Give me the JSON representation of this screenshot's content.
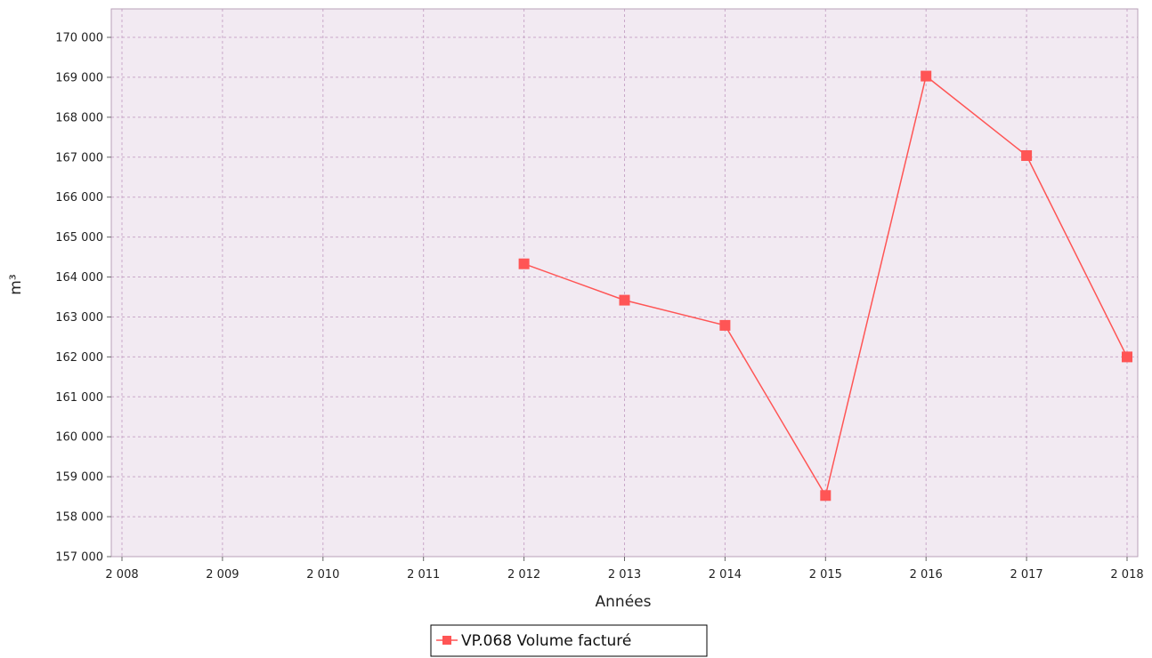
{
  "chart_data": {
    "type": "line",
    "title": "",
    "xlabel": "Années",
    "ylabel": "m³",
    "xlim": [
      2008,
      2018
    ],
    "ylim": [
      157000,
      170000
    ],
    "grid": true,
    "legend_placement": "bottom-center",
    "x_ticks": [
      "2 008",
      "2 009",
      "2 010",
      "2 011",
      "2 012",
      "2 013",
      "2 014",
      "2 015",
      "2 016",
      "2 017",
      "2 018"
    ],
    "y_ticks": [
      "157 000",
      "158 000",
      "159 000",
      "160 000",
      "161 000",
      "162 000",
      "163 000",
      "164 000",
      "165 000",
      "166 000",
      "167 000",
      "168 000",
      "169 000",
      "170 000"
    ],
    "series": [
      {
        "name": "VP.068 Volume facturé",
        "color": "#ff5555",
        "marker": "square",
        "x": [
          2012,
          2013,
          2014,
          2015,
          2016,
          2017,
          2018
        ],
        "y": [
          164330,
          163420,
          162790,
          158530,
          169030,
          167040,
          162000
        ]
      }
    ]
  },
  "colors": {
    "plot_background": "#f2eaf2",
    "grid": "#c9a8c9",
    "series": "#ff5555"
  }
}
